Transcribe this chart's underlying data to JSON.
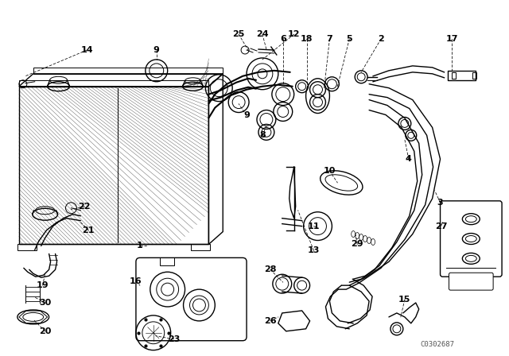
{
  "bg_color": "#ffffff",
  "line_color": "#000000",
  "watermark": "C0302687",
  "figsize": [
    6.4,
    4.48
  ],
  "dpi": 100
}
